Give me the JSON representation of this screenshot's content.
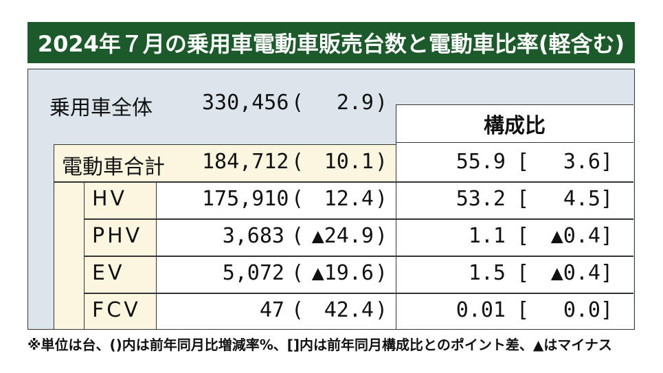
{
  "title": "2024年７月の乗用車電動車販売台数と電動車比率(軽含む)",
  "total": {
    "label": "乗用車全体",
    "units": "330,456",
    "open": "(",
    "change": "2.9",
    "close": ")"
  },
  "ratio_header": "構成比",
  "electrified": {
    "label": "電動車合計",
    "units": "184,712",
    "open": "(",
    "change": "10.1",
    "close": ")",
    "share": "55.9",
    "share_open": "[",
    "share_diff": "3.6",
    "share_close": "]"
  },
  "rows": [
    {
      "label": "HV",
      "units": "175,910",
      "open": "(",
      "change": "12.4",
      "close": ")",
      "share": "53.2",
      "share_open": "[",
      "share_diff": "4.5",
      "share_close": "]"
    },
    {
      "label": "PHV",
      "units": "3,683",
      "open": "(",
      "change": "▲24.9",
      "close": ")",
      "share": "1.1",
      "share_open": "[",
      "share_diff": "▲0.4",
      "share_close": "]"
    },
    {
      "label": "EV",
      "units": "5,072",
      "open": "(",
      "change": "▲19.6",
      "close": ")",
      "share": "1.5",
      "share_open": "[",
      "share_diff": "▲0.4",
      "share_close": "]"
    },
    {
      "label": "FCV",
      "units": "47",
      "open": "(",
      "change": "42.4",
      "close": ")",
      "share": "0.01",
      "share_open": "[",
      "share_diff": "0.0",
      "share_close": "]"
    }
  ],
  "footnote": "※単位は台、()内は前年同月比増減率%、[]内は前年同月構成比とのポイント差、▲はマイナス",
  "colors": {
    "title_bg": "#1c5a2c",
    "panel_bg": "#dde5ec",
    "sales_bg": "#fbf6df"
  }
}
